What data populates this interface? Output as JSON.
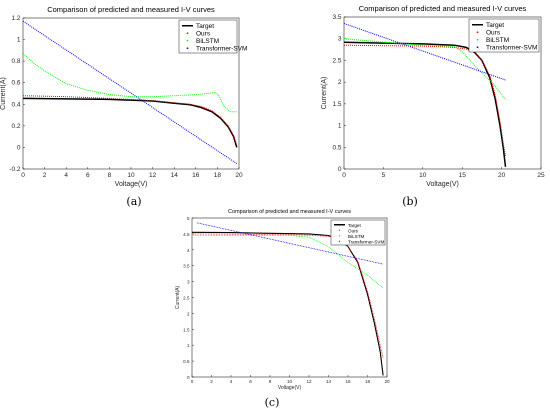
{
  "figure": {
    "captions": [
      "(a)",
      "(b)",
      "(c)"
    ]
  },
  "colors": {
    "Target": "#000000",
    "Ours": "#ff0000",
    "BiLSTM": "#00ff00",
    "Transformer-SVM": "#0000ff"
  },
  "chart_data": [
    {
      "type": "line",
      "title": "Comparison of predicted and measured I-V curves",
      "xlabel": "Voltage(V)",
      "ylabel": "Current(A)",
      "xlim": [
        0,
        20
      ],
      "ylim": [
        -0.2,
        1.2
      ],
      "xticks": [
        "0",
        "2",
        "4",
        "6",
        "8",
        "10",
        "12",
        "14",
        "16",
        "18",
        "20"
      ],
      "yticks": [
        "-0.2",
        "0",
        "0.2",
        "0.4",
        "0.6",
        "0.8",
        "1",
        "1.2"
      ],
      "legend_position": "top-right",
      "series": [
        {
          "name": "Target",
          "style": "solid-thick",
          "x": [
            0,
            4,
            8,
            12,
            14,
            15.5,
            16.5,
            17.5,
            18.3,
            19,
            19.5,
            19.8
          ],
          "y": [
            0.455,
            0.45,
            0.445,
            0.43,
            0.41,
            0.395,
            0.37,
            0.33,
            0.27,
            0.19,
            0.1,
            0.0
          ]
        },
        {
          "name": "Ours",
          "style": "dotted",
          "x": [
            0,
            4,
            8,
            12,
            14,
            15.5,
            16.5,
            17.5,
            18.3,
            19,
            19.5,
            19.8
          ],
          "y": [
            0.48,
            0.47,
            0.455,
            0.435,
            0.415,
            0.4,
            0.38,
            0.34,
            0.28,
            0.2,
            0.11,
            0.02
          ]
        },
        {
          "name": "BiLSTM",
          "style": "dotted",
          "x": [
            0,
            1,
            2,
            3,
            4,
            6,
            8,
            10,
            12,
            14,
            16,
            17,
            17.8,
            18.2,
            18.6,
            19.2,
            19.8
          ],
          "y": [
            0.87,
            0.78,
            0.71,
            0.65,
            0.59,
            0.53,
            0.49,
            0.47,
            0.47,
            0.48,
            0.49,
            0.5,
            0.51,
            0.47,
            0.38,
            0.33,
            0.33
          ]
        },
        {
          "name": "Transformer-SVM",
          "style": "dotted",
          "x": [
            0,
            19.8
          ],
          "y": [
            1.17,
            -0.15
          ]
        }
      ]
    },
    {
      "type": "line",
      "title": "Comparison of predicted and measured I-V curves",
      "xlabel": "Voltage(V)",
      "ylabel": "Current(A)",
      "xlim": [
        0,
        25
      ],
      "ylim": [
        0,
        3.5
      ],
      "xticks": [
        "0",
        "5",
        "10",
        "15",
        "20",
        "25"
      ],
      "yticks": [
        "0",
        "0.5",
        "1",
        "1.5",
        "2",
        "2.5",
        "3",
        "3.5"
      ],
      "legend_position": "top-right",
      "series": [
        {
          "name": "Target",
          "style": "solid-thick",
          "x": [
            0,
            5,
            10,
            14,
            15.5,
            16.5,
            17.5,
            18.5,
            19.2,
            19.8,
            20.2,
            20.5
          ],
          "y": [
            2.92,
            2.9,
            2.88,
            2.85,
            2.8,
            2.7,
            2.5,
            2.1,
            1.6,
            1.0,
            0.5,
            0.05
          ]
        },
        {
          "name": "Ours",
          "style": "dotted",
          "x": [
            0,
            5,
            10,
            14,
            15.5,
            16.5,
            17.5,
            18.5,
            19.2,
            19.8,
            20.2,
            20.5
          ],
          "y": [
            2.85,
            2.84,
            2.83,
            2.8,
            2.76,
            2.68,
            2.5,
            2.15,
            1.7,
            1.1,
            0.6,
            0.3
          ]
        },
        {
          "name": "BiLSTM",
          "style": "dotted",
          "x": [
            0,
            5,
            10,
            14,
            15,
            17,
            19,
            20.5
          ],
          "y": [
            3.0,
            2.92,
            2.85,
            2.82,
            2.7,
            2.3,
            1.95,
            1.6
          ]
        },
        {
          "name": "Transformer-SVM",
          "style": "dotted",
          "x": [
            0,
            20.5
          ],
          "y": [
            3.35,
            2.05
          ]
        }
      ]
    },
    {
      "type": "line",
      "title": "Comparison of predicted and measured I-V curves",
      "xlabel": "Voltage(V)",
      "ylabel": "Current(A)",
      "xlim": [
        0,
        20
      ],
      "ylim": [
        0,
        5
      ],
      "xticks": [
        "0",
        "2",
        "4",
        "6",
        "8",
        "10",
        "12",
        "14",
        "16",
        "18",
        "20"
      ],
      "yticks": [
        "0",
        "0.5",
        "1",
        "1.5",
        "2",
        "2.5",
        "3",
        "3.5",
        "4",
        "4.5",
        "5"
      ],
      "legend_position": "top-right",
      "series": [
        {
          "name": "Target",
          "style": "solid-thick",
          "x": [
            0,
            4,
            8,
            12,
            14,
            15,
            16,
            17,
            18,
            18.7,
            19.3,
            19.6
          ],
          "y": [
            4.55,
            4.54,
            4.52,
            4.5,
            4.45,
            4.35,
            4.1,
            3.6,
            2.6,
            1.7,
            0.8,
            0.05
          ]
        },
        {
          "name": "Ours",
          "style": "dotted",
          "x": [
            0,
            4,
            8,
            12,
            14,
            15,
            16,
            17,
            18,
            18.7,
            19.3,
            19.6
          ],
          "y": [
            4.5,
            4.49,
            4.48,
            4.46,
            4.42,
            4.33,
            4.1,
            3.65,
            2.7,
            1.85,
            1.0,
            0.6
          ]
        },
        {
          "name": "BiLSTM",
          "style": "dotted",
          "x": [
            0,
            6,
            10,
            12,
            14,
            16,
            18,
            19.6
          ],
          "y": [
            4.45,
            4.45,
            4.45,
            4.4,
            4.1,
            3.6,
            3.2,
            2.8
          ]
        },
        {
          "name": "Transformer-SVM",
          "style": "dotted",
          "x": [
            0.5,
            19.6
          ],
          "y": [
            4.85,
            3.55
          ]
        }
      ]
    }
  ]
}
